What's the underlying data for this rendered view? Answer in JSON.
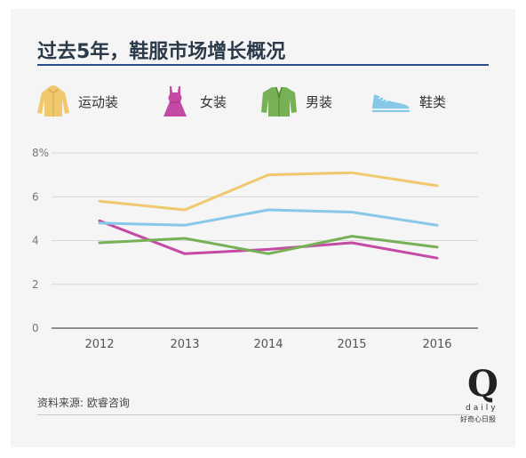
{
  "title": "过去5年，鞋服市场增长概况",
  "source": "资料来源: 欧睿咨询",
  "brand": {
    "logo": "Q",
    "name": "daily",
    "sub": "好奇心日报"
  },
  "colors": {
    "title_rule": "#2a4f85",
    "sportswear": "#f0c96e",
    "womenswear": "#c44aa5",
    "menswear": "#77b155",
    "footwear": "#87c8e8"
  },
  "legend": [
    {
      "label": "运动装",
      "icon": "hoodie-icon",
      "color": "#f0c96e"
    },
    {
      "label": "女装",
      "icon": "dress-icon",
      "color": "#c44aa5"
    },
    {
      "label": "男装",
      "icon": "jacket-icon",
      "color": "#77b155"
    },
    {
      "label": "鞋类",
      "icon": "sneaker-icon",
      "color": "#87c8e8"
    }
  ],
  "chart_data": {
    "type": "line",
    "title": "过去5年，鞋服市场增长概况",
    "xlabel": "",
    "ylabel": "",
    "x": [
      "2012",
      "2013",
      "2014",
      "2015",
      "2016"
    ],
    "ylim": [
      0,
      8
    ],
    "yticks": [
      0,
      2,
      4,
      6,
      8
    ],
    "ytick_labels": [
      "0",
      "2",
      "4",
      "6",
      "8%"
    ],
    "grid": true,
    "legend_position": "top",
    "series": [
      {
        "name": "运动装",
        "color": "#f0c96e",
        "values": [
          5.8,
          5.4,
          7.0,
          7.1,
          6.5
        ]
      },
      {
        "name": "女装",
        "color": "#c44aa5",
        "values": [
          4.9,
          3.4,
          3.6,
          3.9,
          3.2
        ]
      },
      {
        "name": "男装",
        "color": "#77b155",
        "values": [
          3.9,
          4.1,
          3.4,
          4.2,
          3.7
        ]
      },
      {
        "name": "鞋类",
        "color": "#87c8e8",
        "values": [
          4.8,
          4.7,
          5.4,
          5.3,
          4.7
        ]
      }
    ]
  }
}
